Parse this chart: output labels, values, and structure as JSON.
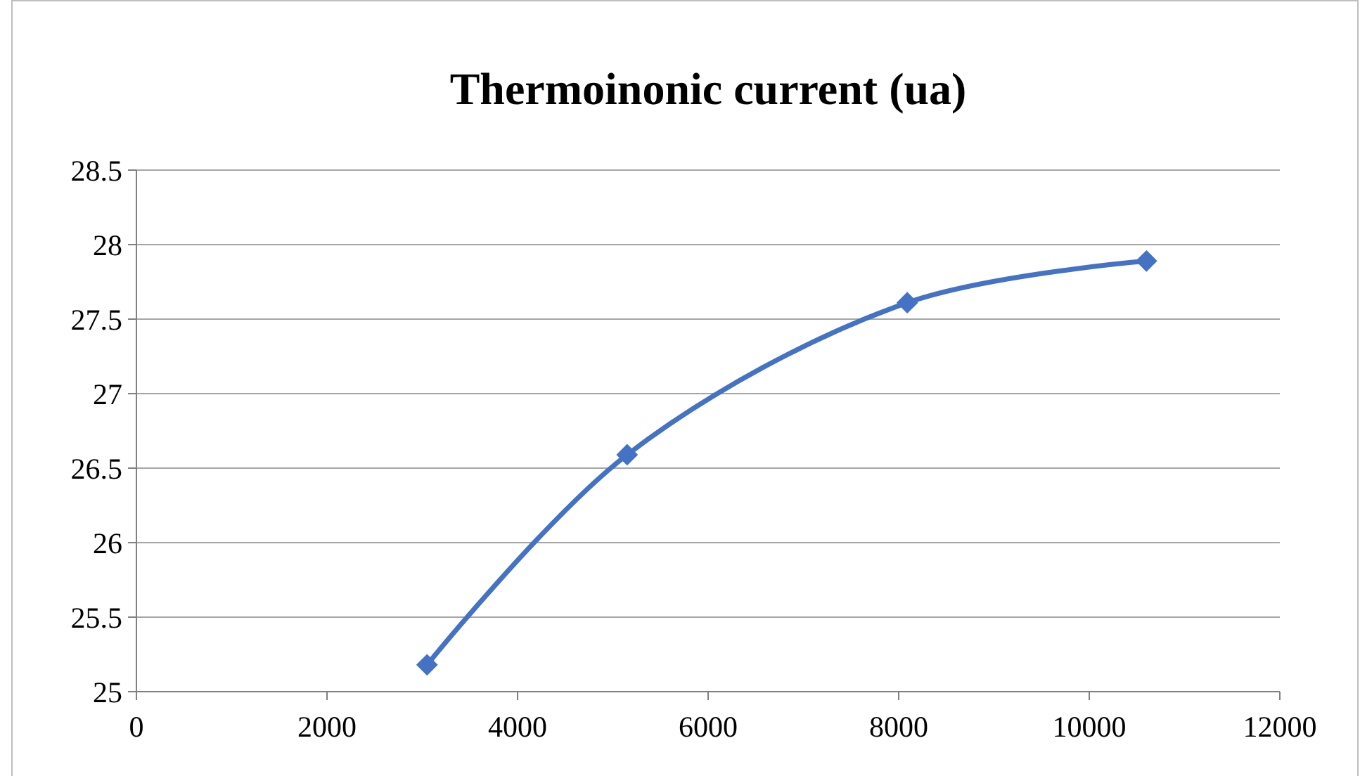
{
  "chart_data": {
    "type": "line",
    "title": "Thermoinonic current  (ua)",
    "x": [
      3050,
      5150,
      8090,
      10600
    ],
    "series": [
      {
        "color": "#4472c4",
        "values": [
          25.18,
          26.59,
          27.61,
          27.89
        ]
      }
    ],
    "xlim": [
      0,
      12000
    ],
    "xticks": [
      0,
      2000,
      4000,
      6000,
      8000,
      10000,
      12000
    ],
    "ylim": [
      25,
      28.5
    ],
    "yticks": [
      25,
      25.5,
      26,
      26.5,
      27,
      27.5,
      28,
      28.5
    ],
    "grid": "y",
    "marker": "diamond",
    "line_style": "solid"
  }
}
